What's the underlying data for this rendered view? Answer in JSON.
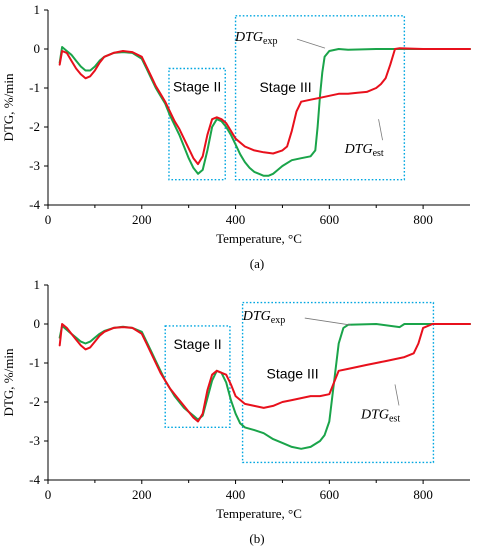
{
  "colors": {
    "exp": "#1aa44a",
    "est": "#e8101c",
    "box": "#00a6e0"
  },
  "chart_data": [
    {
      "type": "line",
      "panel": "(a)",
      "xlabel": "Temperature, °C",
      "ylabel": "DTG, %/min",
      "xlim": [
        0,
        900
      ],
      "ylim": [
        -4,
        1
      ],
      "xticks": [
        "0",
        "200",
        "400",
        "600",
        "800"
      ],
      "yticks": [
        "1",
        "0",
        "-1",
        "-2",
        "-3",
        "-4"
      ],
      "grid": false,
      "stages": [
        {
          "label": "Stage II",
          "x": [
            258,
            378
          ],
          "y": [
            -3.35,
            -0.5
          ]
        },
        {
          "label": "Stage III",
          "x": [
            400,
            760
          ],
          "y": [
            -3.35,
            0.85
          ]
        }
      ],
      "series": [
        {
          "name": "DTG_exp",
          "label_main": "DTG",
          "label_sub": "exp",
          "key": "exp",
          "x": [
            25,
            30,
            40,
            50,
            60,
            70,
            80,
            90,
            100,
            110,
            120,
            140,
            160,
            180,
            200,
            210,
            220,
            230,
            240,
            250,
            260,
            270,
            280,
            290,
            300,
            310,
            320,
            330,
            340,
            350,
            360,
            370,
            380,
            390,
            400,
            410,
            420,
            430,
            440,
            450,
            460,
            470,
            480,
            490,
            500,
            520,
            540,
            560,
            570,
            575,
            580,
            585,
            590,
            600,
            620,
            640,
            700,
            800,
            900
          ],
          "y": [
            -0.35,
            0.05,
            -0.05,
            -0.15,
            -0.3,
            -0.45,
            -0.55,
            -0.55,
            -0.45,
            -0.3,
            -0.2,
            -0.1,
            -0.08,
            -0.1,
            -0.25,
            -0.5,
            -0.75,
            -1.0,
            -1.2,
            -1.4,
            -1.7,
            -1.95,
            -2.2,
            -2.5,
            -2.8,
            -3.05,
            -3.2,
            -3.1,
            -2.6,
            -2.0,
            -1.8,
            -1.85,
            -2.0,
            -2.2,
            -2.45,
            -2.7,
            -2.9,
            -3.05,
            -3.15,
            -3.2,
            -3.25,
            -3.25,
            -3.2,
            -3.1,
            -3.0,
            -2.85,
            -2.8,
            -2.75,
            -2.6,
            -2.0,
            -1.2,
            -0.6,
            -0.2,
            -0.05,
            0.0,
            -0.02,
            0.0,
            0.0,
            0.0
          ]
        },
        {
          "name": "DTG_est",
          "label_main": "DTG",
          "label_sub": "est",
          "key": "est",
          "x": [
            25,
            30,
            40,
            50,
            60,
            70,
            80,
            90,
            100,
            110,
            120,
            140,
            160,
            180,
            200,
            210,
            220,
            230,
            240,
            250,
            260,
            270,
            280,
            290,
            300,
            310,
            320,
            330,
            340,
            350,
            360,
            370,
            380,
            390,
            400,
            420,
            440,
            460,
            480,
            500,
            510,
            520,
            530,
            540,
            560,
            580,
            600,
            620,
            640,
            660,
            680,
            700,
            710,
            720,
            730,
            740,
            750,
            800,
            900
          ],
          "y": [
            -0.4,
            -0.05,
            -0.1,
            -0.3,
            -0.5,
            -0.65,
            -0.75,
            -0.7,
            -0.55,
            -0.35,
            -0.2,
            -0.1,
            -0.05,
            -0.08,
            -0.2,
            -0.45,
            -0.7,
            -0.95,
            -1.15,
            -1.35,
            -1.6,
            -1.85,
            -2.05,
            -2.3,
            -2.55,
            -2.8,
            -2.95,
            -2.75,
            -2.2,
            -1.8,
            -1.75,
            -1.8,
            -1.9,
            -2.1,
            -2.3,
            -2.5,
            -2.6,
            -2.65,
            -2.68,
            -2.6,
            -2.5,
            -2.1,
            -1.6,
            -1.35,
            -1.3,
            -1.25,
            -1.2,
            -1.15,
            -1.15,
            -1.12,
            -1.1,
            -1.0,
            -0.9,
            -0.75,
            -0.4,
            0.0,
            0.02,
            0.0,
            0.0
          ]
        }
      ],
      "label_exp_anchor": [
        595,
        0.1
      ],
      "label_est_anchor": [
        705,
        -1.8
      ]
    },
    {
      "type": "line",
      "panel": "(b)",
      "xlabel": "Temperature, °C",
      "ylabel": "DTG, %/min",
      "xlim": [
        0,
        900
      ],
      "ylim": [
        -4,
        1
      ],
      "xticks": [
        "0",
        "200",
        "400",
        "600",
        "800"
      ],
      "yticks": [
        "1",
        "0",
        "-1",
        "-2",
        "-3",
        "-4"
      ],
      "grid": false,
      "stages": [
        {
          "label": "Stage II",
          "x": [
            250,
            388
          ],
          "y": [
            -2.65,
            -0.05
          ]
        },
        {
          "label": "Stage III",
          "x": [
            415,
            822
          ],
          "y": [
            -3.55,
            0.55
          ]
        }
      ],
      "series": [
        {
          "name": "DTG_exp",
          "label_main": "DTG",
          "label_sub": "exp",
          "key": "exp",
          "x": [
            25,
            30,
            40,
            50,
            60,
            70,
            80,
            90,
            100,
            110,
            120,
            140,
            160,
            180,
            200,
            210,
            220,
            230,
            240,
            250,
            260,
            270,
            280,
            290,
            300,
            310,
            320,
            330,
            340,
            350,
            360,
            370,
            380,
            390,
            400,
            410,
            420,
            440,
            460,
            480,
            500,
            520,
            540,
            560,
            580,
            590,
            600,
            610,
            620,
            630,
            640,
            700,
            750,
            760,
            800,
            900
          ],
          "y": [
            -0.35,
            -0.05,
            -0.15,
            -0.25,
            -0.35,
            -0.45,
            -0.5,
            -0.45,
            -0.35,
            -0.25,
            -0.18,
            -0.1,
            -0.07,
            -0.1,
            -0.2,
            -0.45,
            -0.7,
            -0.95,
            -1.2,
            -1.45,
            -1.65,
            -1.85,
            -2.0,
            -2.15,
            -2.25,
            -2.35,
            -2.45,
            -2.35,
            -1.9,
            -1.45,
            -1.2,
            -1.25,
            -1.5,
            -1.95,
            -2.3,
            -2.55,
            -2.65,
            -2.72,
            -2.8,
            -2.95,
            -3.05,
            -3.15,
            -3.2,
            -3.15,
            -3.0,
            -2.85,
            -2.5,
            -1.5,
            -0.5,
            -0.1,
            -0.02,
            0.0,
            -0.08,
            0.0,
            0.0,
            0.0
          ]
        },
        {
          "name": "DTG_est",
          "label_main": "DTG",
          "label_sub": "est",
          "key": "est",
          "x": [
            25,
            30,
            40,
            50,
            60,
            70,
            80,
            90,
            100,
            110,
            120,
            140,
            160,
            180,
            200,
            210,
            220,
            230,
            240,
            250,
            260,
            270,
            280,
            290,
            300,
            310,
            320,
            330,
            340,
            350,
            360,
            370,
            380,
            390,
            400,
            420,
            440,
            460,
            480,
            500,
            520,
            540,
            560,
            580,
            600,
            610,
            620,
            640,
            660,
            680,
            700,
            720,
            740,
            760,
            780,
            790,
            800,
            820,
            900
          ],
          "y": [
            -0.55,
            0.0,
            -0.1,
            -0.25,
            -0.4,
            -0.55,
            -0.65,
            -0.6,
            -0.45,
            -0.3,
            -0.2,
            -0.1,
            -0.08,
            -0.1,
            -0.25,
            -0.5,
            -0.75,
            -1.0,
            -1.25,
            -1.45,
            -1.65,
            -1.8,
            -1.95,
            -2.1,
            -2.25,
            -2.4,
            -2.5,
            -2.3,
            -1.7,
            -1.3,
            -1.2,
            -1.25,
            -1.3,
            -1.55,
            -1.85,
            -2.05,
            -2.1,
            -2.15,
            -2.1,
            -2.0,
            -1.95,
            -1.9,
            -1.85,
            -1.85,
            -1.8,
            -1.5,
            -1.2,
            -1.15,
            -1.1,
            -1.05,
            -1.0,
            -0.95,
            -0.9,
            -0.85,
            -0.75,
            -0.5,
            -0.1,
            0.0,
            0.0
          ]
        }
      ],
      "label_exp_anchor": [
        650,
        0.05
      ],
      "label_est_anchor": [
        740,
        -1.55
      ]
    }
  ]
}
